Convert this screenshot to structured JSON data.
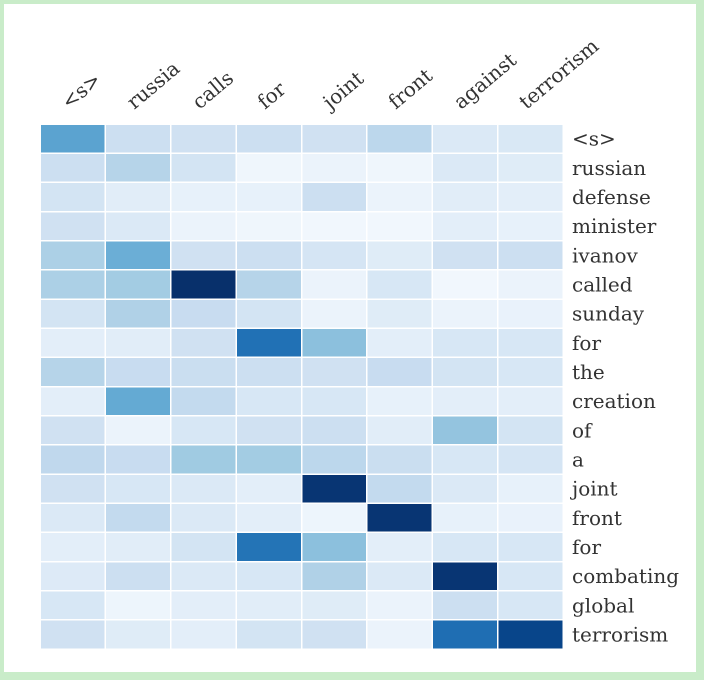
{
  "chart_data": {
    "type": "heatmap",
    "x_labels": [
      "<s>",
      "russia",
      "calls",
      "for",
      "joint",
      "front",
      "against",
      "terrorism"
    ],
    "y_labels": [
      "<s>",
      "russian",
      "defense",
      "minister",
      "ivanov",
      "called",
      "sunday",
      "for",
      "the",
      "creation",
      "of",
      "a",
      "joint",
      "front",
      "for",
      "combating",
      "global",
      "terrorism"
    ],
    "values": [
      [
        0.55,
        0.22,
        0.2,
        0.22,
        0.2,
        0.28,
        0.14,
        0.15
      ],
      [
        0.22,
        0.3,
        0.18,
        0.04,
        0.06,
        0.04,
        0.14,
        0.12
      ],
      [
        0.18,
        0.11,
        0.08,
        0.08,
        0.22,
        0.06,
        0.11,
        0.1
      ],
      [
        0.2,
        0.14,
        0.06,
        0.04,
        0.03,
        0.03,
        0.1,
        0.08
      ],
      [
        0.33,
        0.5,
        0.2,
        0.22,
        0.17,
        0.12,
        0.2,
        0.22
      ],
      [
        0.33,
        0.36,
        1.0,
        0.3,
        0.06,
        0.16,
        0.03,
        0.06
      ],
      [
        0.18,
        0.32,
        0.24,
        0.18,
        0.06,
        0.12,
        0.06,
        0.07
      ],
      [
        0.1,
        0.11,
        0.2,
        0.75,
        0.42,
        0.1,
        0.16,
        0.16
      ],
      [
        0.3,
        0.24,
        0.23,
        0.22,
        0.2,
        0.24,
        0.18,
        0.16
      ],
      [
        0.1,
        0.52,
        0.26,
        0.16,
        0.16,
        0.08,
        0.1,
        0.1
      ],
      [
        0.2,
        0.06,
        0.16,
        0.2,
        0.22,
        0.11,
        0.4,
        0.18
      ],
      [
        0.27,
        0.24,
        0.37,
        0.36,
        0.28,
        0.23,
        0.16,
        0.17
      ],
      [
        0.2,
        0.16,
        0.14,
        0.1,
        0.98,
        0.26,
        0.14,
        0.08
      ],
      [
        0.14,
        0.26,
        0.14,
        0.1,
        0.05,
        0.98,
        0.08,
        0.07
      ],
      [
        0.1,
        0.11,
        0.18,
        0.74,
        0.42,
        0.1,
        0.16,
        0.16
      ],
      [
        0.13,
        0.22,
        0.14,
        0.16,
        0.32,
        0.14,
        0.98,
        0.16
      ],
      [
        0.16,
        0.05,
        0.1,
        0.11,
        0.12,
        0.06,
        0.22,
        0.16
      ],
      [
        0.2,
        0.12,
        0.1,
        0.18,
        0.2,
        0.06,
        0.76,
        0.92
      ]
    ],
    "title": "",
    "xlabel": "",
    "ylabel": "",
    "legend": "none",
    "grid": false,
    "x_tick_position": "top",
    "y_tick_position": "right",
    "colormap": "Blues",
    "color_low": "#f7fbff",
    "color_high": "#08306b"
  }
}
